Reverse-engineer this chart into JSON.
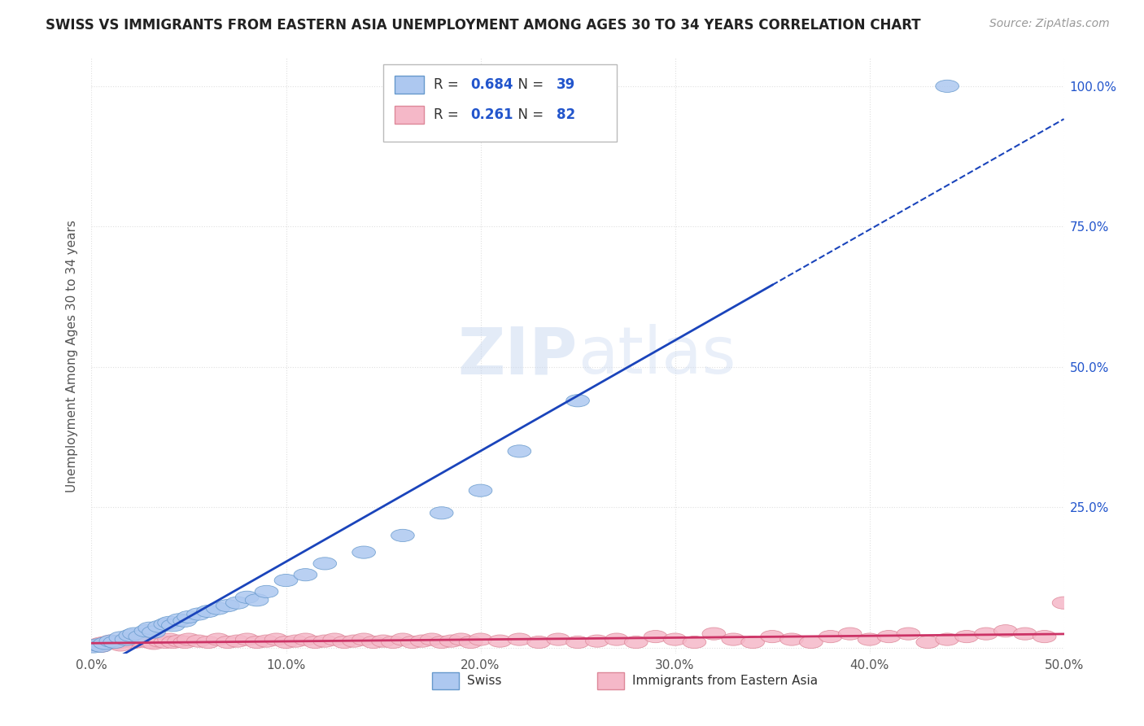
{
  "title": "SWISS VS IMMIGRANTS FROM EASTERN ASIA UNEMPLOYMENT AMONG AGES 30 TO 34 YEARS CORRELATION CHART",
  "source": "Source: ZipAtlas.com",
  "ylabel": "Unemployment Among Ages 30 to 34 years",
  "xlim": [
    0.0,
    0.5
  ],
  "ylim": [
    -0.01,
    1.05
  ],
  "xticks": [
    0.0,
    0.1,
    0.2,
    0.3,
    0.4,
    0.5
  ],
  "xtick_labels": [
    "0.0%",
    "10.0%",
    "20.0%",
    "30.0%",
    "40.0%",
    "50.0%"
  ],
  "yticks": [
    0.0,
    0.25,
    0.5,
    0.75,
    1.0
  ],
  "ytick_labels": [
    "",
    "25.0%",
    "50.0%",
    "75.0%",
    "100.0%"
  ],
  "swiss_color": "#adc8f0",
  "swiss_edge_color": "#6699cc",
  "swiss_line_color": "#1a44bb",
  "immigrants_color": "#f5b8c8",
  "immigrants_edge_color": "#dd8899",
  "immigrants_line_color": "#cc3366",
  "swiss_R": 0.684,
  "swiss_N": 39,
  "immigrants_R": 0.261,
  "immigrants_N": 82,
  "background_color": "#ffffff",
  "grid_color": "#e0e0e0",
  "title_color": "#222222",
  "label_color": "#555555",
  "legend_R_color": "#2255cc",
  "watermark": "ZIPatlas",
  "swiss_points": [
    [
      0.001,
      0.002
    ],
    [
      0.003,
      0.005
    ],
    [
      0.005,
      0.003
    ],
    [
      0.007,
      0.008
    ],
    [
      0.01,
      0.012
    ],
    [
      0.012,
      0.01
    ],
    [
      0.015,
      0.018
    ],
    [
      0.018,
      0.015
    ],
    [
      0.02,
      0.022
    ],
    [
      0.022,
      0.025
    ],
    [
      0.025,
      0.02
    ],
    [
      0.028,
      0.03
    ],
    [
      0.03,
      0.035
    ],
    [
      0.032,
      0.028
    ],
    [
      0.035,
      0.038
    ],
    [
      0.038,
      0.042
    ],
    [
      0.04,
      0.045
    ],
    [
      0.042,
      0.04
    ],
    [
      0.045,
      0.05
    ],
    [
      0.048,
      0.048
    ],
    [
      0.05,
      0.055
    ],
    [
      0.055,
      0.06
    ],
    [
      0.06,
      0.065
    ],
    [
      0.065,
      0.07
    ],
    [
      0.07,
      0.075
    ],
    [
      0.075,
      0.08
    ],
    [
      0.08,
      0.09
    ],
    [
      0.085,
      0.085
    ],
    [
      0.09,
      0.1
    ],
    [
      0.1,
      0.12
    ],
    [
      0.11,
      0.13
    ],
    [
      0.12,
      0.15
    ],
    [
      0.14,
      0.17
    ],
    [
      0.16,
      0.2
    ],
    [
      0.18,
      0.24
    ],
    [
      0.2,
      0.28
    ],
    [
      0.22,
      0.35
    ],
    [
      0.25,
      0.44
    ],
    [
      0.44,
      1.0
    ]
  ],
  "immigrants_points": [
    [
      0.002,
      0.005
    ],
    [
      0.005,
      0.008
    ],
    [
      0.008,
      0.01
    ],
    [
      0.01,
      0.012
    ],
    [
      0.012,
      0.008
    ],
    [
      0.015,
      0.01
    ],
    [
      0.018,
      0.012
    ],
    [
      0.02,
      0.015
    ],
    [
      0.022,
      0.01
    ],
    [
      0.025,
      0.012
    ],
    [
      0.028,
      0.015
    ],
    [
      0.03,
      0.01
    ],
    [
      0.032,
      0.008
    ],
    [
      0.035,
      0.012
    ],
    [
      0.038,
      0.01
    ],
    [
      0.04,
      0.015
    ],
    [
      0.042,
      0.01
    ],
    [
      0.045,
      0.012
    ],
    [
      0.048,
      0.01
    ],
    [
      0.05,
      0.015
    ],
    [
      0.055,
      0.012
    ],
    [
      0.06,
      0.01
    ],
    [
      0.065,
      0.015
    ],
    [
      0.07,
      0.01
    ],
    [
      0.075,
      0.012
    ],
    [
      0.08,
      0.015
    ],
    [
      0.085,
      0.01
    ],
    [
      0.09,
      0.012
    ],
    [
      0.095,
      0.015
    ],
    [
      0.1,
      0.01
    ],
    [
      0.105,
      0.012
    ],
    [
      0.11,
      0.015
    ],
    [
      0.115,
      0.01
    ],
    [
      0.12,
      0.012
    ],
    [
      0.125,
      0.015
    ],
    [
      0.13,
      0.01
    ],
    [
      0.135,
      0.012
    ],
    [
      0.14,
      0.015
    ],
    [
      0.145,
      0.01
    ],
    [
      0.15,
      0.012
    ],
    [
      0.155,
      0.01
    ],
    [
      0.16,
      0.015
    ],
    [
      0.165,
      0.01
    ],
    [
      0.17,
      0.012
    ],
    [
      0.175,
      0.015
    ],
    [
      0.18,
      0.01
    ],
    [
      0.185,
      0.012
    ],
    [
      0.19,
      0.015
    ],
    [
      0.195,
      0.01
    ],
    [
      0.2,
      0.015
    ],
    [
      0.21,
      0.012
    ],
    [
      0.22,
      0.015
    ],
    [
      0.23,
      0.01
    ],
    [
      0.24,
      0.015
    ],
    [
      0.25,
      0.01
    ],
    [
      0.26,
      0.012
    ],
    [
      0.27,
      0.015
    ],
    [
      0.28,
      0.01
    ],
    [
      0.29,
      0.02
    ],
    [
      0.3,
      0.015
    ],
    [
      0.31,
      0.01
    ],
    [
      0.32,
      0.025
    ],
    [
      0.33,
      0.015
    ],
    [
      0.34,
      0.01
    ],
    [
      0.35,
      0.02
    ],
    [
      0.36,
      0.015
    ],
    [
      0.37,
      0.01
    ],
    [
      0.38,
      0.02
    ],
    [
      0.39,
      0.025
    ],
    [
      0.4,
      0.015
    ],
    [
      0.41,
      0.02
    ],
    [
      0.42,
      0.025
    ],
    [
      0.43,
      0.01
    ],
    [
      0.44,
      0.015
    ],
    [
      0.45,
      0.02
    ],
    [
      0.46,
      0.025
    ],
    [
      0.47,
      0.03
    ],
    [
      0.48,
      0.025
    ],
    [
      0.49,
      0.02
    ],
    [
      0.5,
      0.08
    ],
    [
      0.005,
      0.003
    ],
    [
      0.015,
      0.005
    ]
  ]
}
